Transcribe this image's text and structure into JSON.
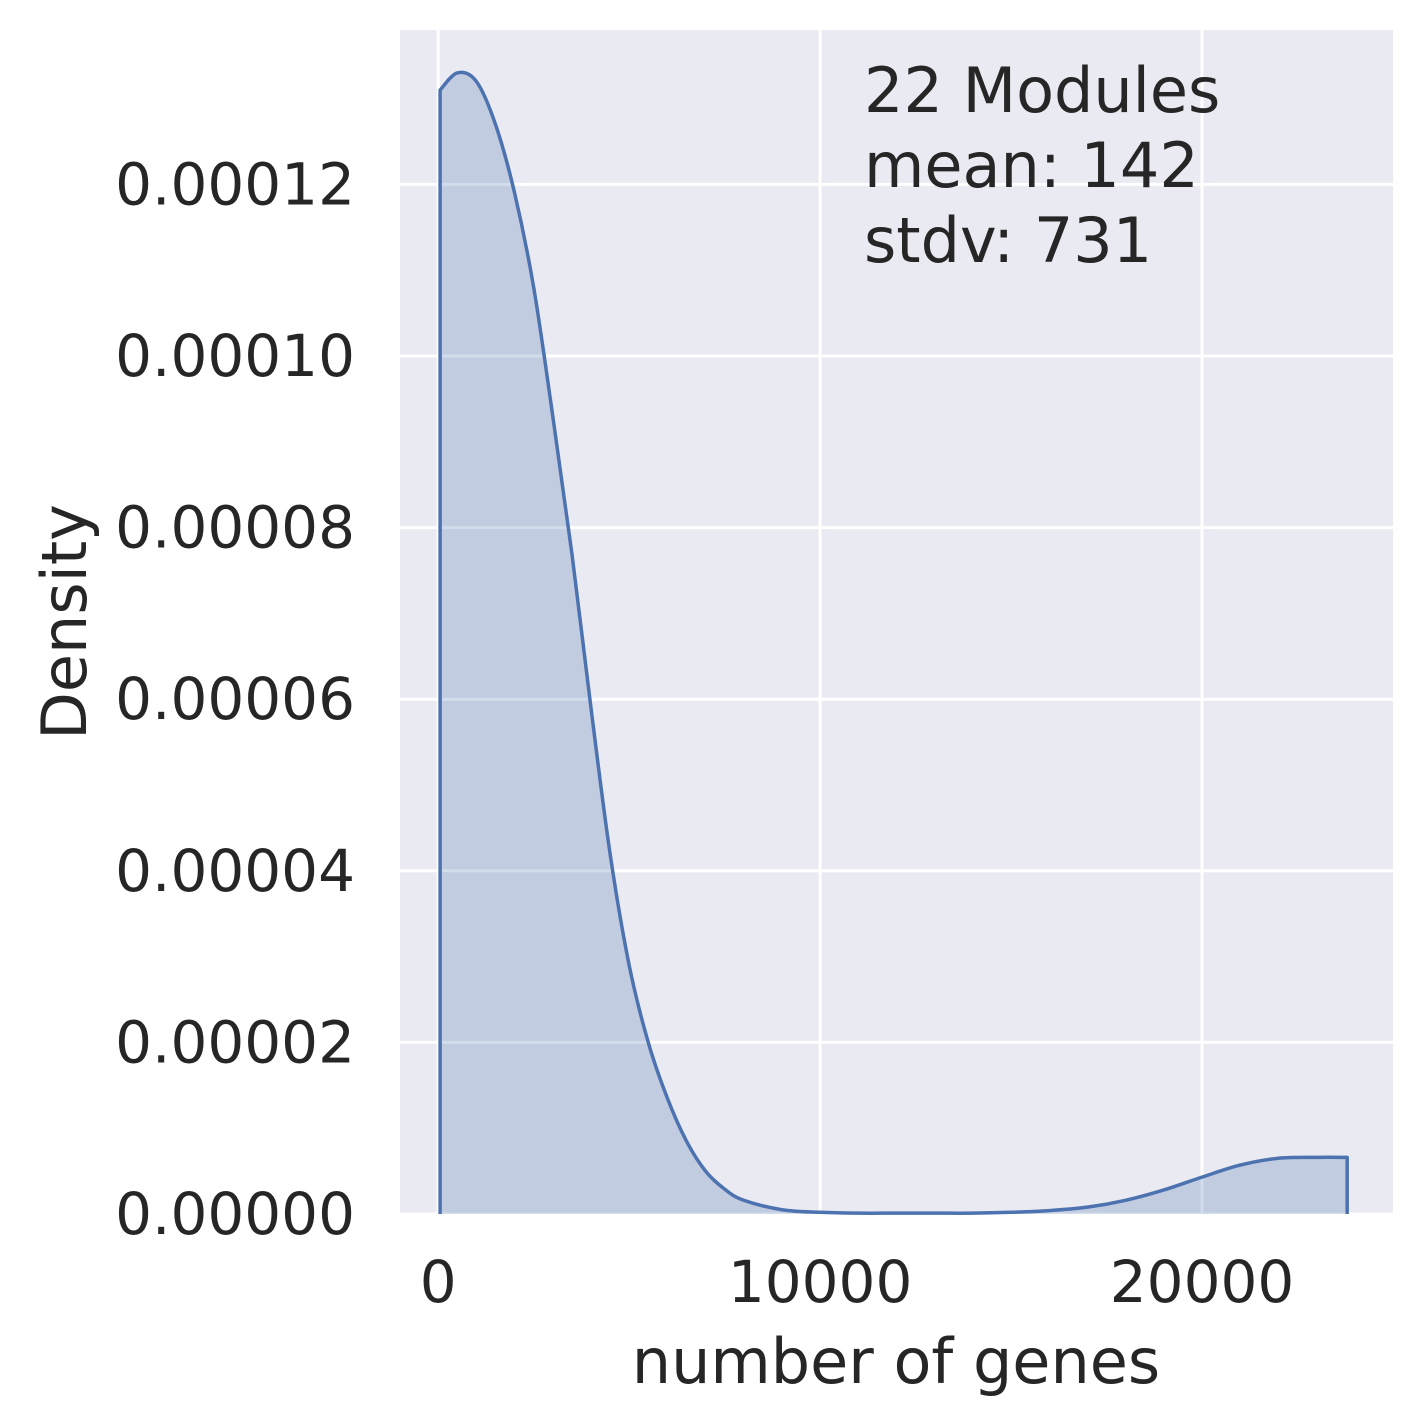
{
  "chart_data": {
    "type": "area",
    "style": "kde density plot",
    "xlabel": "number of genes",
    "ylabel": "Density",
    "xlim": [
      -1000,
      25000
    ],
    "ylim": [
      0,
      0.000138
    ],
    "x_ticks": [
      0,
      10000,
      20000
    ],
    "x_tick_labels": [
      "0",
      "10000",
      "20000"
    ],
    "y_ticks": [
      0,
      2e-05,
      4e-05,
      6e-05,
      8e-05,
      0.0001,
      0.00012
    ],
    "y_tick_labels": [
      "0.00000",
      "0.00002",
      "0.00004",
      "0.00006",
      "0.00008",
      "0.00010",
      "0.00012"
    ],
    "grid": true,
    "colors": {
      "line": "#4c72b0",
      "fill": "#4c72b0",
      "plot_bg": "#eaeaf2",
      "grid": "#ffffff"
    },
    "annotation": [
      "22 Modules",
      "mean: 142",
      "stdv: 731"
    ],
    "series": [
      {
        "x": [
          50,
          500,
          1000,
          1500,
          2000,
          2500,
          3000,
          3500,
          4000,
          4500,
          5000,
          5500,
          6000,
          6500,
          7000,
          7500,
          8000,
          9000,
          10000,
          11000,
          12000,
          13000,
          14000,
          15000,
          16000,
          17000,
          18000,
          19000,
          20000,
          21000,
          22000,
          23000,
          23800
        ],
        "y": [
          0.000131,
          0.000133,
          0.000132,
          0.000127,
          0.000119,
          0.000108,
          9.3e-05,
          7.7e-05,
          5.9e-05,
          4.2e-05,
          2.9e-05,
          2e-05,
          1.35e-05,
          8.5e-06,
          5e-06,
          2.9e-06,
          1.6e-06,
          5e-07,
          2e-07,
          1e-07,
          1e-07,
          1e-07,
          1e-07,
          2e-07,
          4e-07,
          8e-07,
          1.6e-06,
          2.8e-06,
          4.3e-06,
          5.7e-06,
          6.5e-06,
          6.6e-06,
          6.6e-06
        ]
      }
    ]
  }
}
